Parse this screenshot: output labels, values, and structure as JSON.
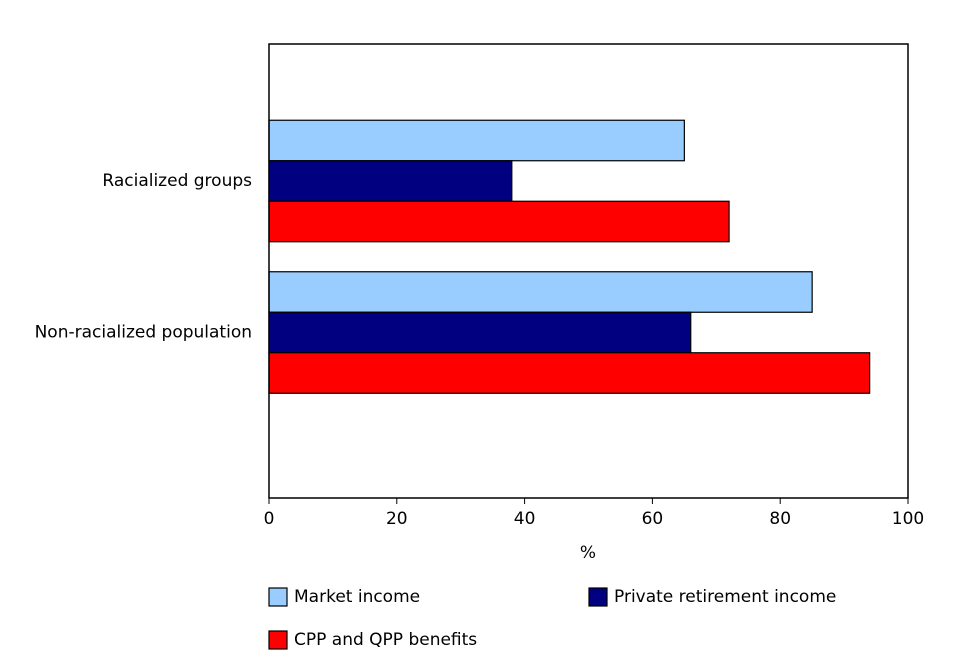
{
  "chart_data": {
    "type": "hbar",
    "categories": [
      "Racialized groups",
      "Non-racialized population"
    ],
    "series": [
      {
        "name": "Market income",
        "color": "#99ccff",
        "values": [
          65,
          85
        ]
      },
      {
        "name": "Private retirement income",
        "color": "#000080",
        "values": [
          38,
          66
        ]
      },
      {
        "name": "CPP and QPP benefits",
        "color": "#ff0000",
        "values": [
          72,
          94
        ]
      }
    ],
    "xlabel": "%",
    "xlim": [
      0,
      100
    ],
    "xticks": [
      0,
      20,
      40,
      60,
      80,
      100
    ],
    "grid": false,
    "legend": "bottom"
  }
}
